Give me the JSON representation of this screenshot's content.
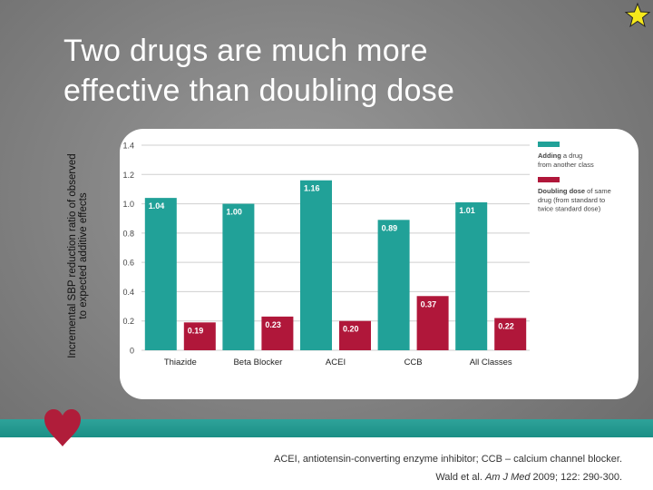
{
  "slide": {
    "title_line1": "Two drugs are much more",
    "title_line2": "effective than doubling dose",
    "ylabel_line1": "Incremental SBP reduction ratio of observed",
    "ylabel_line2": "to expected additive effects",
    "footnote": "ACEI, antiotensin-converting enzyme inhibitor; CCB – calcium channel blocker.",
    "citation_prefix": "Wald et al. ",
    "citation_journal": "Am J Med",
    "citation_suffix": " 2009; 122: 290-300."
  },
  "colors": {
    "teal": "#21a198",
    "crimson": "#b0173a",
    "accent_band": "#22998f",
    "heart": "#b01d3a",
    "star": "#f5e81b"
  },
  "chart_data": {
    "type": "bar",
    "categories": [
      "Thiazide",
      "Beta Blocker",
      "ACEI",
      "CCB",
      "All Classes"
    ],
    "series": [
      {
        "name": "Adding a drug from another class",
        "legend_bold": "Adding",
        "legend_rest_line1": " a drug",
        "legend_rest_line2": "from another class",
        "values": [
          1.04,
          1.0,
          1.16,
          0.89,
          1.01
        ],
        "labels": [
          "1.04",
          "1.00",
          "1.16",
          "0.89",
          "1.01"
        ]
      },
      {
        "name": "Doubling dose of same drug (from standard to twice standard dose)",
        "legend_bold": "Doubling dose",
        "legend_rest_line1": " of same",
        "legend_rest_line2": "drug (from standard to",
        "legend_rest_line3": "twice standard dose)",
        "values": [
          0.19,
          0.23,
          0.2,
          0.37,
          0.22
        ],
        "labels": [
          "0.19",
          "0.23",
          "0.20",
          "0.37",
          "0.22"
        ]
      }
    ],
    "yticks": [
      "0",
      "0.2",
      "0.4",
      "0.6",
      "0.8",
      "1.0",
      "1.2",
      "1.4"
    ],
    "ylim": [
      0,
      1.4
    ],
    "grid": true,
    "legend": "right"
  }
}
